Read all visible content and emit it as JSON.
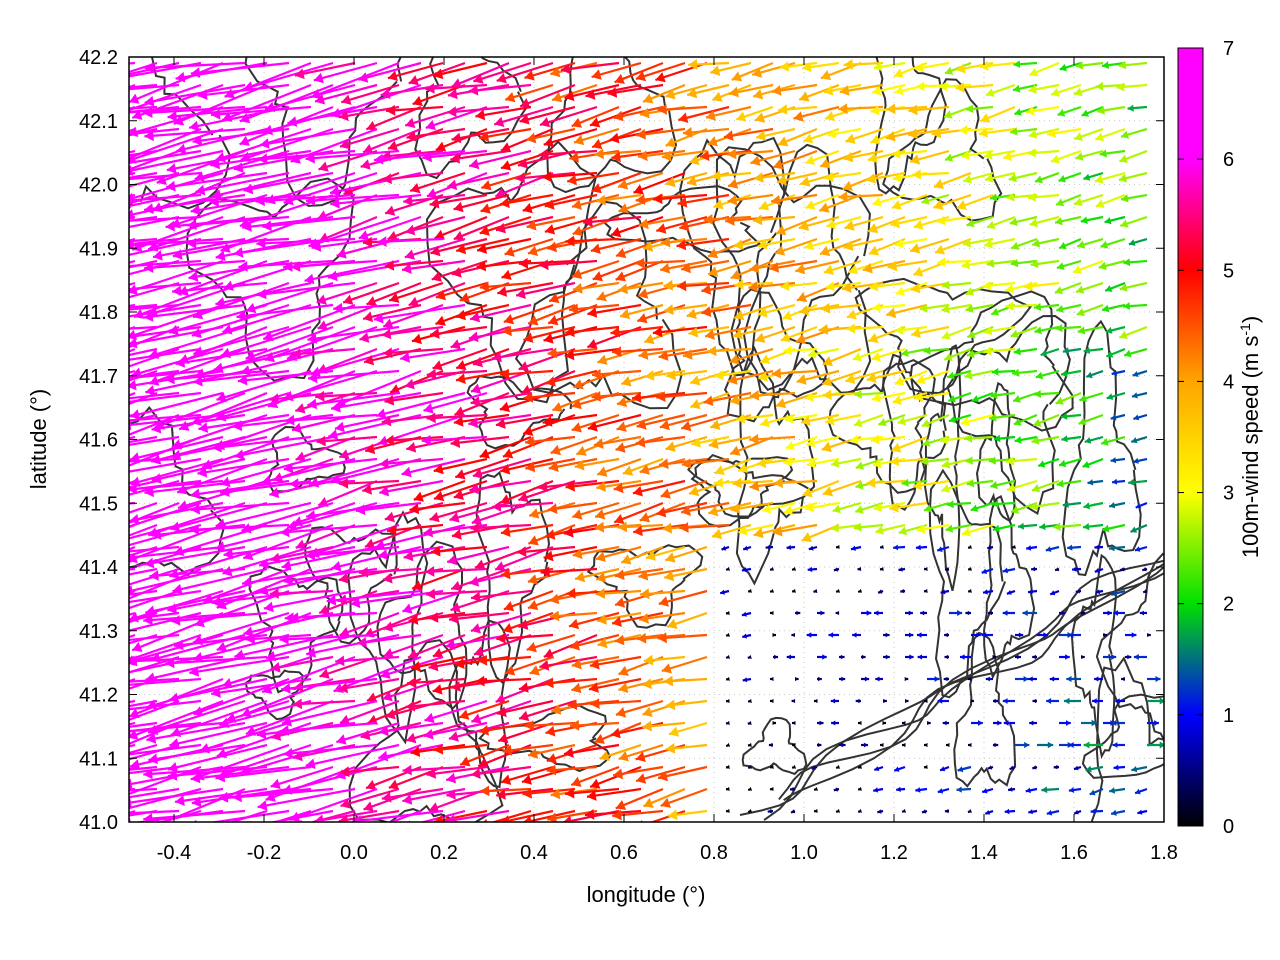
{
  "chart_data": {
    "type": "vector-field",
    "title": "",
    "xlabel": "longitude (°)",
    "ylabel": "latitude (°)",
    "xlim": [
      -0.5,
      1.8
    ],
    "ylim": [
      41.0,
      42.2
    ],
    "xticks": [
      "-0.4",
      "-0.2",
      "0.0",
      "0.2",
      "0.4",
      "0.6",
      "0.8",
      "1.0",
      "1.2",
      "1.4",
      "1.6",
      "1.8"
    ],
    "yticks": [
      "41.0",
      "41.1",
      "41.2",
      "41.3",
      "41.4",
      "41.5",
      "41.6",
      "41.7",
      "41.8",
      "41.9",
      "42.0",
      "42.1",
      "42.2"
    ],
    "grid": true,
    "colorbar": {
      "label": "100m-wind speed (m s",
      "label_superscript": "-1",
      "label_suffix": ")",
      "range": [
        0,
        7
      ],
      "ticks": [
        "0",
        "1",
        "2",
        "3",
        "4",
        "5",
        "6",
        "7"
      ],
      "palette": [
        "#000000",
        "#0000ff",
        "#00e000",
        "#ffff00",
        "#ffa500",
        "#ff0000",
        "#ff00ff",
        "#ff00ff"
      ]
    },
    "series": [
      {
        "name": "wind vectors",
        "quantity": "100m-wind speed",
        "unit": "m s-1",
        "pattern": "westward to west-north-westward flow; speeds near 7 in the west, 3-6 across the north and centre, below 2 in the south-east"
      },
      {
        "name": "terrain contours",
        "color": "#333333"
      }
    ]
  }
}
